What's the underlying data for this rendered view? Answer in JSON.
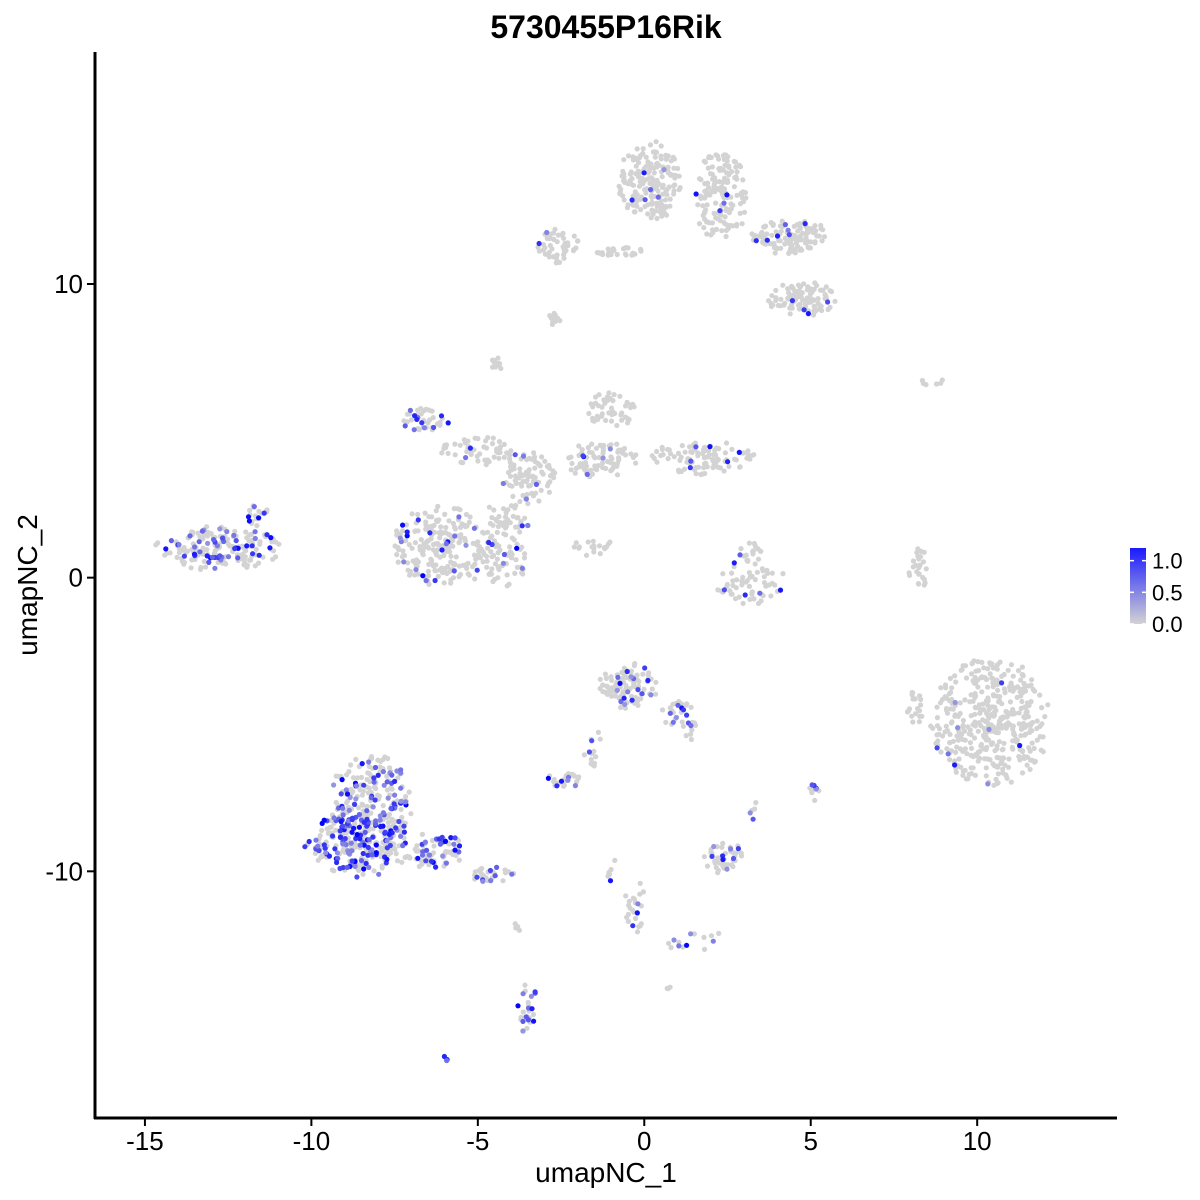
{
  "chart_data": {
    "type": "scatter",
    "title": "5730455P16Rik",
    "xlabel": "umapNC_1",
    "ylabel": "umapNC_2",
    "xlim": [
      -16.5,
      14.2
    ],
    "ylim": [
      -18.4,
      17.9
    ],
    "x_ticks": [
      -15,
      -10,
      -5,
      0,
      5,
      10
    ],
    "x_tick_labels": [
      "-15",
      "-10",
      "-5",
      "0",
      "5",
      "10"
    ],
    "y_ticks": [
      -10,
      0,
      10
    ],
    "y_tick_labels": [
      "-10",
      "0",
      "10"
    ],
    "color_low": "#d3d3d3",
    "color_high": "#0000ff",
    "legend": {
      "position": "right",
      "range": [
        0,
        1.2
      ],
      "ticks": [
        0.0,
        0.5,
        1.0
      ],
      "tick_labels": [
        "0.0",
        "0.5",
        "1.0"
      ]
    },
    "clusters": [
      {
        "cx": -12.8,
        "cy": 1.0,
        "rx": 1.9,
        "ry": 0.75,
        "n": 180,
        "expr_frac": 0.3
      },
      {
        "cx": -11.6,
        "cy": 2.2,
        "rx": 0.4,
        "ry": 0.5,
        "n": 20,
        "expr_frac": 0.2
      },
      {
        "cx": -6.0,
        "cy": 1.1,
        "rx": 1.6,
        "ry": 1.4,
        "n": 230,
        "expr_frac": 0.09
      },
      {
        "cx": -4.2,
        "cy": 1.2,
        "rx": 0.8,
        "ry": 1.5,
        "n": 100,
        "expr_frac": 0.12
      },
      {
        "cx": -6.6,
        "cy": 5.4,
        "rx": 0.8,
        "ry": 0.4,
        "n": 40,
        "expr_frac": 0.15
      },
      {
        "cx": -5.0,
        "cy": 4.3,
        "rx": 1.2,
        "ry": 0.5,
        "n": 55,
        "expr_frac": 0.08
      },
      {
        "cx": -3.5,
        "cy": 3.4,
        "rx": 0.9,
        "ry": 0.9,
        "n": 80,
        "expr_frac": 0.06
      },
      {
        "cx": -1.3,
        "cy": 4.0,
        "rx": 1.2,
        "ry": 0.6,
        "n": 80,
        "expr_frac": 0.05
      },
      {
        "cx": 1.8,
        "cy": 4.1,
        "rx": 1.6,
        "ry": 0.6,
        "n": 100,
        "expr_frac": 0.04
      },
      {
        "cx": -1.0,
        "cy": 5.7,
        "rx": 0.8,
        "ry": 0.6,
        "n": 45,
        "expr_frac": 0.06
      },
      {
        "cx": -4.4,
        "cy": 7.2,
        "rx": 0.2,
        "ry": 0.35,
        "n": 12,
        "expr_frac": 0.0
      },
      {
        "cx": -1.5,
        "cy": 1.0,
        "rx": 0.7,
        "ry": 0.3,
        "n": 18,
        "expr_frac": 0.0
      },
      {
        "cx": 3.2,
        "cy": -0.2,
        "rx": 1.1,
        "ry": 0.8,
        "n": 60,
        "expr_frac": 0.06
      },
      {
        "cx": 3.2,
        "cy": 0.8,
        "rx": 0.4,
        "ry": 0.4,
        "n": 15,
        "expr_frac": 0.1
      },
      {
        "cx": 8.2,
        "cy": 0.3,
        "rx": 0.3,
        "ry": 0.8,
        "n": 25,
        "expr_frac": 0.0
      },
      {
        "cx": 10.4,
        "cy": -4.9,
        "rx": 1.8,
        "ry": 2.2,
        "n": 420,
        "expr_frac": 0.03
      },
      {
        "cx": 8.1,
        "cy": -4.5,
        "rx": 0.3,
        "ry": 0.6,
        "n": 20,
        "expr_frac": 0.0
      },
      {
        "cx": 0.2,
        "cy": 13.5,
        "rx": 1.0,
        "ry": 1.4,
        "n": 190,
        "expr_frac": 0.04
      },
      {
        "cx": 2.3,
        "cy": 13.0,
        "rx": 0.8,
        "ry": 1.6,
        "n": 150,
        "expr_frac": 0.05
      },
      {
        "cx": 4.4,
        "cy": 11.6,
        "rx": 1.2,
        "ry": 0.6,
        "n": 120,
        "expr_frac": 0.07
      },
      {
        "cx": 4.7,
        "cy": 9.5,
        "rx": 1.1,
        "ry": 0.6,
        "n": 100,
        "expr_frac": 0.05
      },
      {
        "cx": -2.5,
        "cy": 11.3,
        "rx": 0.7,
        "ry": 0.6,
        "n": 50,
        "expr_frac": 0.05
      },
      {
        "cx": -0.6,
        "cy": 11.1,
        "rx": 1.0,
        "ry": 0.15,
        "n": 25,
        "expr_frac": 0.0
      },
      {
        "cx": -2.7,
        "cy": 8.8,
        "rx": 0.25,
        "ry": 0.2,
        "n": 10,
        "expr_frac": 0.1
      },
      {
        "cx": 8.8,
        "cy": 6.7,
        "rx": 0.5,
        "ry": 0.2,
        "n": 6,
        "expr_frac": 0.0
      },
      {
        "cx": -0.5,
        "cy": -3.7,
        "rx": 0.9,
        "ry": 0.8,
        "n": 110,
        "expr_frac": 0.09
      },
      {
        "cx": 1.0,
        "cy": -4.6,
        "rx": 0.5,
        "ry": 0.5,
        "n": 25,
        "expr_frac": 0.15
      },
      {
        "cx": -1.6,
        "cy": -5.8,
        "rx": 0.3,
        "ry": 0.8,
        "n": 14,
        "expr_frac": 0.3
      },
      {
        "cx": -2.4,
        "cy": -6.9,
        "rx": 0.6,
        "ry": 0.25,
        "n": 28,
        "expr_frac": 0.1
      },
      {
        "cx": -8.2,
        "cy": -7.8,
        "rx": 1.3,
        "ry": 1.8,
        "n": 260,
        "expr_frac": 0.38
      },
      {
        "cx": -8.6,
        "cy": -9.1,
        "rx": 1.6,
        "ry": 1.1,
        "n": 220,
        "expr_frac": 0.38
      },
      {
        "cx": -6.3,
        "cy": -9.3,
        "rx": 1.0,
        "ry": 0.6,
        "n": 80,
        "expr_frac": 0.28
      },
      {
        "cx": -4.6,
        "cy": -10.1,
        "rx": 0.7,
        "ry": 0.3,
        "n": 30,
        "expr_frac": 0.35
      },
      {
        "cx": 2.4,
        "cy": -9.5,
        "rx": 0.6,
        "ry": 0.6,
        "n": 45,
        "expr_frac": 0.2
      },
      {
        "cx": 5.1,
        "cy": -7.3,
        "rx": 0.15,
        "ry": 0.3,
        "n": 10,
        "expr_frac": 0.5
      },
      {
        "cx": 3.3,
        "cy": -7.9,
        "rx": 0.15,
        "ry": 0.5,
        "n": 5,
        "expr_frac": 0.3
      },
      {
        "cx": -0.3,
        "cy": -11.3,
        "rx": 0.4,
        "ry": 1.0,
        "n": 25,
        "expr_frac": 0.2
      },
      {
        "cx": 1.4,
        "cy": -12.3,
        "rx": 1.0,
        "ry": 0.4,
        "n": 14,
        "expr_frac": 0.25
      },
      {
        "cx": -3.5,
        "cy": -14.7,
        "rx": 0.3,
        "ry": 0.9,
        "n": 28,
        "expr_frac": 0.35
      },
      {
        "cx": -6.0,
        "cy": -16.4,
        "rx": 0.1,
        "ry": 0.1,
        "n": 4,
        "expr_frac": 1.0
      },
      {
        "cx": 0.7,
        "cy": -14.0,
        "rx": 0.1,
        "ry": 0.1,
        "n": 3,
        "expr_frac": 0.0
      },
      {
        "cx": -1.0,
        "cy": -10.0,
        "rx": 0.15,
        "ry": 0.6,
        "n": 6,
        "expr_frac": 0.2
      },
      {
        "cx": -3.8,
        "cy": -11.8,
        "rx": 0.1,
        "ry": 0.3,
        "n": 4,
        "expr_frac": 0.0
      },
      {
        "cx": 1.4,
        "cy": -5.2,
        "rx": 0.2,
        "ry": 0.4,
        "n": 8,
        "expr_frac": 0.2
      }
    ]
  }
}
